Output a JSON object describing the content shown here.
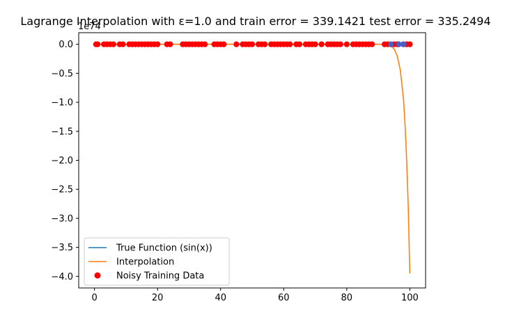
{
  "chart_data": {
    "type": "line",
    "title": "Lagrange Interpolation with ε=1.0 and train error =  339.1421 test error = 335.2494",
    "xlabel": "",
    "ylabel": "",
    "offset_text": "1e74",
    "xlim": [
      -5,
      105
    ],
    "ylim": [
      -4.2,
      0.2
    ],
    "x_ticks": [
      0,
      20,
      40,
      60,
      80,
      100
    ],
    "x_tick_labels": [
      "0",
      "20",
      "40",
      "60",
      "80",
      "100"
    ],
    "y_ticks": [
      0.0,
      -0.5,
      -1.0,
      -1.5,
      -2.0,
      -2.5,
      -3.0,
      -3.5,
      -4.0
    ],
    "y_tick_labels": [
      "0.0",
      "−0.5",
      "−1.0",
      "−1.5",
      "−2.0",
      "−2.5",
      "−3.0",
      "−3.5",
      "−4.0"
    ],
    "grid": false,
    "legend_position": "lower left",
    "legend": [
      "True Function (sin(x))",
      "Interpolation",
      "Noisy Training Data"
    ],
    "series": [
      {
        "name": "True Function (sin(x))",
        "kind": "line",
        "color": "#1f77b4",
        "x": [
          0,
          100
        ],
        "y": [
          0,
          0
        ]
      },
      {
        "name": "Interpolation",
        "kind": "line",
        "color": "#ff7f0e",
        "x": [
          0,
          90,
          92,
          93,
          94,
          95,
          96,
          97,
          98,
          98.5,
          99,
          99.5,
          100
        ],
        "y": [
          0,
          0,
          -0.003,
          -0.01,
          -0.03,
          -0.08,
          -0.2,
          -0.45,
          -0.95,
          -1.4,
          -2.0,
          -2.8,
          -3.95
        ]
      },
      {
        "name": "Noisy Training Data",
        "kind": "scatter",
        "color": "#ff0000",
        "x": [
          0.5,
          1,
          3,
          4,
          5,
          6,
          8,
          9,
          11,
          12,
          13,
          14,
          15,
          16,
          17,
          18,
          19,
          20,
          23,
          24,
          28,
          29,
          30,
          31,
          32,
          33,
          34,
          35,
          38,
          39,
          40,
          41,
          45,
          47,
          48,
          49,
          50,
          52,
          53,
          54,
          56,
          57,
          58,
          59,
          60,
          61,
          62,
          64,
          65,
          67,
          68,
          69,
          70,
          72,
          74,
          75,
          76,
          77,
          78,
          80,
          82,
          83,
          84,
          85,
          86,
          87,
          88,
          92,
          93,
          95,
          96,
          98,
          99,
          100
        ],
        "y": [
          0,
          0,
          0,
          0,
          0,
          0,
          0,
          0,
          0,
          0,
          0,
          0,
          0,
          0,
          0,
          0,
          0,
          0,
          0,
          0,
          0,
          0,
          0,
          0,
          0,
          0,
          0,
          0,
          0,
          0,
          0,
          0,
          0,
          0,
          0,
          0,
          0,
          0,
          0,
          0,
          0,
          0,
          0,
          0,
          0,
          0,
          0,
          0,
          0,
          0,
          0,
          0,
          0,
          0,
          0,
          0,
          0,
          0,
          0,
          0,
          0,
          0,
          0,
          0,
          0,
          0,
          0,
          0,
          0,
          0,
          0,
          0,
          0,
          0
        ]
      },
      {
        "name": "Test Data",
        "kind": "scatter",
        "color": "#4a5fc1",
        "x": [
          94,
          96.5,
          98
        ],
        "y": [
          0,
          0,
          0
        ]
      }
    ]
  }
}
